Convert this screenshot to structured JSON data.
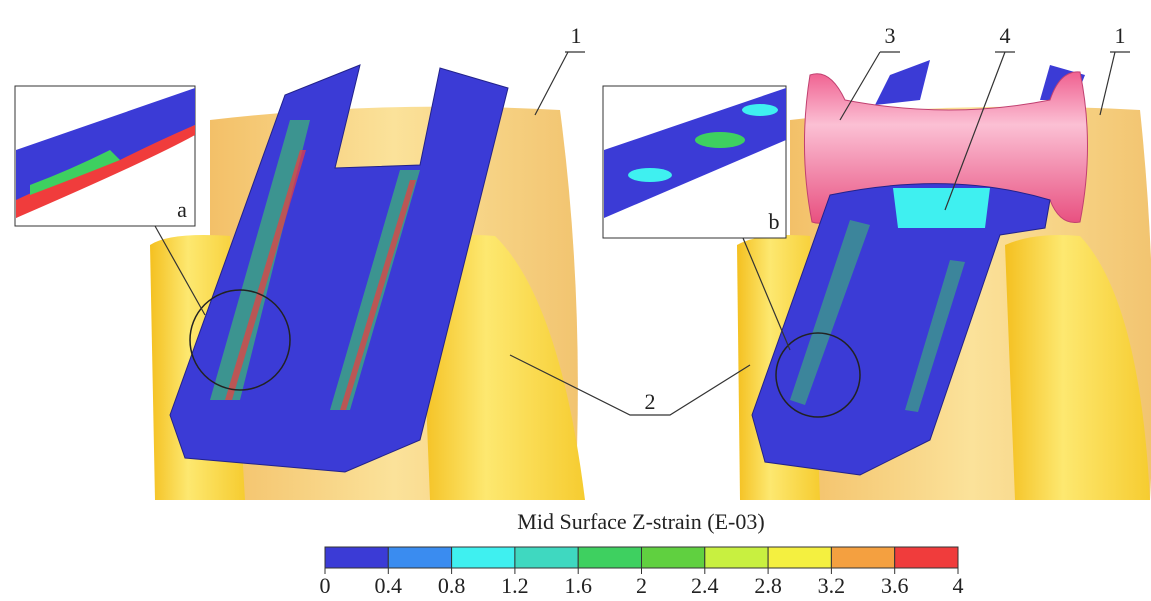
{
  "figure": {
    "left": {
      "callouts": [
        "1"
      ],
      "inset_label": "a"
    },
    "right": {
      "callouts": [
        "3",
        "4",
        "1"
      ],
      "inset_label": "b"
    },
    "shared_callout": "2",
    "colorbar": {
      "title": "Mid Surface Z-strain (E-03)",
      "ticks": [
        0,
        0.4,
        0.8,
        1.2,
        1.6,
        2,
        2.4,
        2.8,
        3.2,
        3.6,
        4
      ],
      "colors": [
        "#3b3bd6",
        "#3a8cf0",
        "#3ff0f0",
        "#3fd8c0",
        "#3ed060",
        "#60d040",
        "#c8f040",
        "#f4f040",
        "#f4a040",
        "#f03c3c"
      ]
    }
  }
}
